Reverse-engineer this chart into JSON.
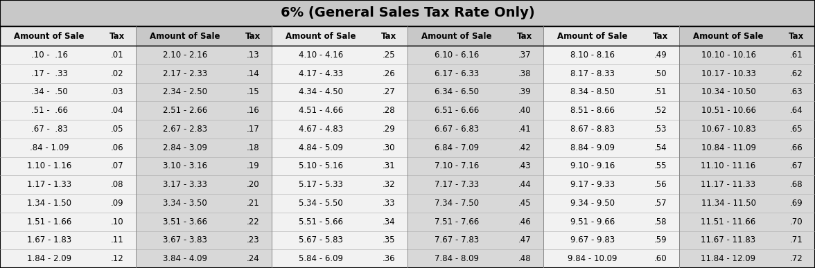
{
  "title": "6% (General Sales Tax Rate Only)",
  "col_headers": [
    "Amount of Sale",
    "Tax",
    "Amount of Sale",
    "Tax",
    "Amount of Sale",
    "Tax",
    "Amount of Sale",
    "Tax",
    "Amount of Sale",
    "Tax",
    "Amount of Sale",
    "Tax"
  ],
  "rows": [
    [
      ".10 -  .16",
      ".01",
      "2.10 - 2.16",
      ".13",
      "4.10 - 4.16",
      ".25",
      "6.10 - 6.16",
      ".37",
      "8.10 - 8.16",
      ".49",
      "10.10 - 10.16",
      ".61"
    ],
    [
      ".17 -  .33",
      ".02",
      "2.17 - 2.33",
      ".14",
      "4.17 - 4.33",
      ".26",
      "6.17 - 6.33",
      ".38",
      "8.17 - 8.33",
      ".50",
      "10.17 - 10.33",
      ".62"
    ],
    [
      ".34 -  .50",
      ".03",
      "2.34 - 2.50",
      ".15",
      "4.34 - 4.50",
      ".27",
      "6.34 - 6.50",
      ".39",
      "8.34 - 8.50",
      ".51",
      "10.34 - 10.50",
      ".63"
    ],
    [
      ".51 -  .66",
      ".04",
      "2.51 - 2.66",
      ".16",
      "4.51 - 4.66",
      ".28",
      "6.51 - 6.66",
      ".40",
      "8.51 - 8.66",
      ".52",
      "10.51 - 10.66",
      ".64"
    ],
    [
      ".67 -  .83",
      ".05",
      "2.67 - 2.83",
      ".17",
      "4.67 - 4.83",
      ".29",
      "6.67 - 6.83",
      ".41",
      "8.67 - 8.83",
      ".53",
      "10.67 - 10.83",
      ".65"
    ],
    [
      ".84 - 1.09",
      ".06",
      "2.84 - 3.09",
      ".18",
      "4.84 - 5.09",
      ".30",
      "6.84 - 7.09",
      ".42",
      "8.84 - 9.09",
      ".54",
      "10.84 - 11.09",
      ".66"
    ],
    [
      "1.10 - 1.16",
      ".07",
      "3.10 - 3.16",
      ".19",
      "5.10 - 5.16",
      ".31",
      "7.10 - 7.16",
      ".43",
      "9.10 - 9.16",
      ".55",
      "11.10 - 11.16",
      ".67"
    ],
    [
      "1.17 - 1.33",
      ".08",
      "3.17 - 3.33",
      ".20",
      "5.17 - 5.33",
      ".32",
      "7.17 - 7.33",
      ".44",
      "9.17 - 9.33",
      ".56",
      "11.17 - 11.33",
      ".68"
    ],
    [
      "1.34 - 1.50",
      ".09",
      "3.34 - 3.50",
      ".21",
      "5.34 - 5.50",
      ".33",
      "7.34 - 7.50",
      ".45",
      "9.34 - 9.50",
      ".57",
      "11.34 - 11.50",
      ".69"
    ],
    [
      "1.51 - 1.66",
      ".10",
      "3.51 - 3.66",
      ".22",
      "5.51 - 5.66",
      ".34",
      "7.51 - 7.66",
      ".46",
      "9.51 - 9.66",
      ".58",
      "11.51 - 11.66",
      ".70"
    ],
    [
      "1.67 - 1.83",
      ".11",
      "3.67 - 3.83",
      ".23",
      "5.67 - 5.83",
      ".35",
      "7.67 - 7.83",
      ".47",
      "9.67 - 9.83",
      ".59",
      "11.67 - 11.83",
      ".71"
    ],
    [
      "1.84 - 2.09",
      ".12",
      "3.84 - 4.09",
      ".24",
      "5.84 - 6.09",
      ".36",
      "7.84 - 8.09",
      ".48",
      "9.84 - 10.09",
      ".60",
      "11.84 - 12.09",
      ".72"
    ]
  ],
  "title_bg": "#c8c8c8",
  "col_bg_white": "#f2f2f2",
  "col_bg_gray": "#d8d8d8",
  "header_bg_white": "#e8e8e8",
  "header_bg_gray": "#c8c8c8",
  "border_color": "#000000",
  "title_fontsize": 14,
  "header_fontsize": 8.5,
  "data_fontsize": 8.5,
  "figwidth": 11.76,
  "figheight": 3.87,
  "dpi": 100,
  "col_widths_raw": [
    1.45,
    0.55,
    1.45,
    0.55,
    1.45,
    0.55,
    1.45,
    0.55,
    1.45,
    0.55,
    1.45,
    0.55
  ]
}
